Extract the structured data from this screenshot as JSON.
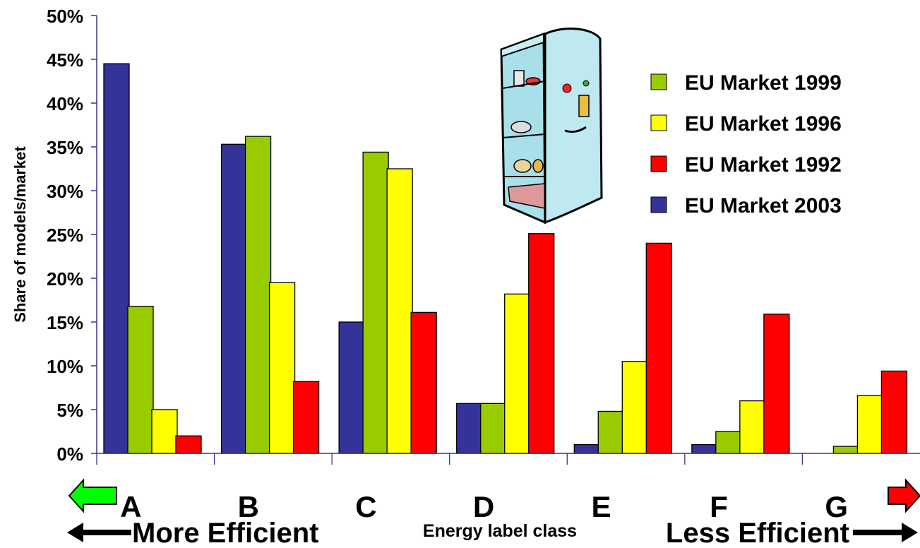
{
  "chart_data": {
    "type": "bar",
    "categories": [
      "A",
      "B",
      "C",
      "D",
      "E",
      "F",
      "G"
    ],
    "series": [
      {
        "name": "EU Market 2003",
        "color": "#333399",
        "values": [
          44.5,
          35.3,
          15.0,
          5.7,
          1.0,
          1.0,
          0.0
        ]
      },
      {
        "name": "EU Market 1999",
        "color": "#99cc00",
        "values": [
          16.8,
          36.2,
          34.4,
          5.7,
          4.8,
          2.5,
          0.8
        ]
      },
      {
        "name": "EU Market 1996",
        "color": "#ffff00",
        "values": [
          5.0,
          19.5,
          32.5,
          18.2,
          10.5,
          6.0,
          6.6
        ]
      },
      {
        "name": "EU Market 1992",
        "color": "#ff0000",
        "values": [
          2.0,
          8.2,
          16.1,
          25.1,
          24.0,
          15.9,
          9.4
        ]
      }
    ],
    "legend_order": [
      "EU Market 1999",
      "EU Market 1996",
      "EU Market 1992",
      "EU Market 2003"
    ],
    "ylabel": "Share of models/market",
    "xlabel": "Energy label class",
    "ylim": [
      0,
      50
    ],
    "yticks": [
      "0%",
      "5%",
      "10%",
      "15%",
      "20%",
      "25%",
      "30%",
      "35%",
      "40%",
      "45%",
      "50%"
    ],
    "legend_position": "top-right",
    "grid": false,
    "annotations": {
      "left": "More Efficient",
      "right": "Less Efficient"
    },
    "arrow_colors": {
      "left": "#00ff00",
      "right": "#ff0000"
    },
    "illustration": "refrigerator-icon"
  }
}
